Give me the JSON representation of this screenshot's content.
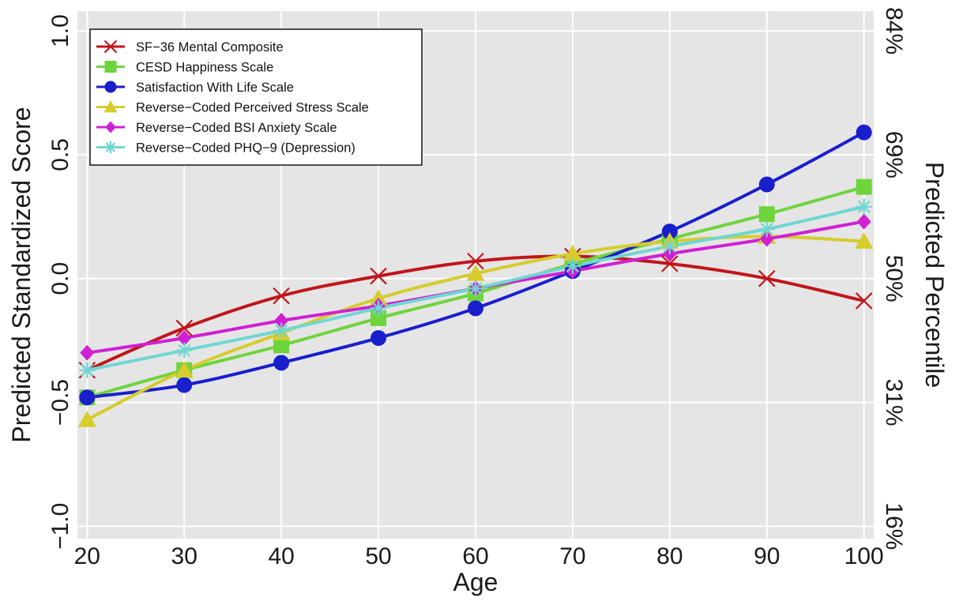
{
  "chart_data": {
    "type": "line",
    "xlabel": "Age",
    "ylabel": "Predicted Standardized Score",
    "y2label": "Predicted Percentile",
    "x": [
      20,
      30,
      40,
      50,
      60,
      70,
      80,
      90,
      100
    ],
    "xticks": [
      "20",
      "30",
      "40",
      "50",
      "60",
      "70",
      "80",
      "90",
      "100"
    ],
    "yticks": [
      {
        "value": -1.0,
        "label": "−1.0"
      },
      {
        "value": -0.5,
        "label": "−0.5"
      },
      {
        "value": 0.0,
        "label": "0.0"
      },
      {
        "value": 0.5,
        "label": "0.5"
      },
      {
        "value": 1.0,
        "label": "1.0"
      }
    ],
    "y2ticks": [
      {
        "value": -1.0,
        "label": "16%"
      },
      {
        "value": -0.5,
        "label": "31%"
      },
      {
        "value": 0.0,
        "label": "50%"
      },
      {
        "value": 0.5,
        "label": "69%"
      },
      {
        "value": 1.0,
        "label": "84%"
      }
    ],
    "xlim": [
      19,
      101
    ],
    "ylim": [
      -1.05,
      1.08
    ],
    "grid": true,
    "legend_position": "top-left",
    "series": [
      {
        "name": "SF−36 Mental Composite",
        "color": "#c0161b",
        "marker": "x",
        "values": [
          -0.37,
          -0.2,
          -0.07,
          0.01,
          0.07,
          0.09,
          0.06,
          0.0,
          -0.09
        ]
      },
      {
        "name": "CESD Happiness Scale",
        "color": "#6ed43c",
        "marker": "square",
        "values": [
          -0.48,
          -0.37,
          -0.27,
          -0.16,
          -0.06,
          0.06,
          0.16,
          0.26,
          0.37
        ]
      },
      {
        "name": "Satisfaction With Life Scale",
        "color": "#1a1fcc",
        "marker": "circle",
        "values": [
          -0.48,
          -0.43,
          -0.34,
          -0.24,
          -0.12,
          0.03,
          0.19,
          0.38,
          0.59
        ]
      },
      {
        "name": "Reverse−Coded Perceived Stress Scale",
        "color": "#d6cc2c",
        "marker": "triangle",
        "values": [
          -0.57,
          -0.37,
          -0.22,
          -0.08,
          0.02,
          0.1,
          0.15,
          0.17,
          0.15
        ]
      },
      {
        "name": "Reverse−Coded BSI Anxiety Scale",
        "color": "#cf21d3",
        "marker": "diamond",
        "values": [
          -0.3,
          -0.24,
          -0.17,
          -0.11,
          -0.04,
          0.03,
          0.1,
          0.16,
          0.23
        ]
      },
      {
        "name": "Reverse−Coded PHQ−9 (Depression)",
        "color": "#6fd6d2",
        "marker": "asterisk",
        "values": [
          -0.37,
          -0.29,
          -0.21,
          -0.12,
          -0.04,
          0.05,
          0.13,
          0.2,
          0.29
        ]
      }
    ]
  }
}
